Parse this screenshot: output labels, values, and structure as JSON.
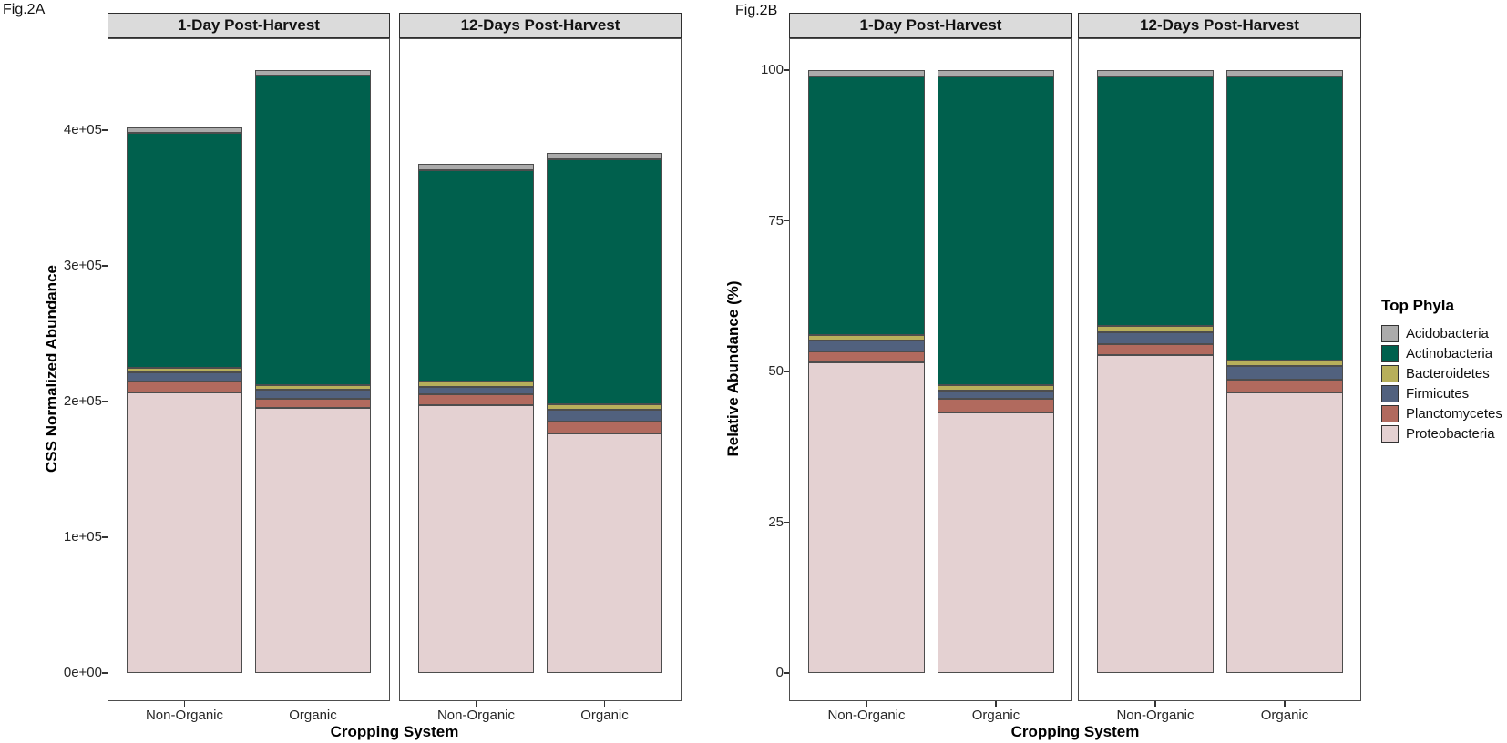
{
  "canvas": {
    "background": "#FFFFFF"
  },
  "colors": {
    "facet_header_bg": "#DBDBDB",
    "facet_header_border": "#2E2E2E",
    "panel_border": "#4D4D4D",
    "bar_border": "#4D4D4D",
    "tick_mark": "#333333",
    "acidobacteria": "#ABABAB",
    "actinobacteria": "#00604D",
    "bacteroidetes": "#B7AF5B",
    "firmicutes": "#51617E",
    "planctomycetes": "#B16A5E",
    "proteobacteria": "#E4D1D2"
  },
  "legend": {
    "title": "Top Phyla",
    "position": "right",
    "items": [
      {
        "label": "Acidobacteria",
        "color": "#ABABAB"
      },
      {
        "label": "Actinobacteria",
        "color": "#00604D"
      },
      {
        "label": "Bacteroidetes",
        "color": "#B7AF5B"
      },
      {
        "label": "Firmicutes",
        "color": "#51617E"
      },
      {
        "label": "Planctomycetes",
        "color": "#B16A5E"
      },
      {
        "label": "Proteobacteria",
        "color": "#E4D1D2"
      }
    ]
  },
  "chart_data": [
    {
      "id": "fig2a",
      "tag": "Fig.2A",
      "type": "stacked-bar",
      "ylabel": "CSS Normalized Abundance",
      "xlabel": "Cropping System",
      "facets": [
        "1-Day Post-Harvest",
        "12-Days Post-Harvest"
      ],
      "bar_labels": [
        "Non-Organic",
        "Organic",
        "Non-Organic",
        "Organic"
      ],
      "bar_facets": [
        0,
        0,
        1,
        1
      ],
      "grid": "off",
      "stack_order": "first series on top",
      "ylim": [
        0,
        460000
      ],
      "y_ticks": [
        {
          "label": "0e+00",
          "value": 0
        },
        {
          "label": "1e+05",
          "value": 100000
        },
        {
          "label": "2e+05",
          "value": 200000
        },
        {
          "label": "3e+05",
          "value": 300000
        },
        {
          "label": "4e+05",
          "value": 400000
        }
      ],
      "series": [
        {
          "name": "Acidobacteria",
          "color": "#ABABAB",
          "values": [
            4000,
            4000,
            4500,
            4500
          ]
        },
        {
          "name": "Actinobacteria",
          "color": "#00604D",
          "values": [
            173000,
            228000,
            156000,
            181000
          ]
        },
        {
          "name": "Bacteroidetes",
          "color": "#B7AF5B",
          "values": [
            3600,
            4000,
            3800,
            4000
          ]
        },
        {
          "name": "Firmicutes",
          "color": "#51617E",
          "values": [
            6700,
            6700,
            5600,
            8500
          ]
        },
        {
          "name": "Planctomycetes",
          "color": "#B16A5E",
          "values": [
            7700,
            6700,
            7900,
            8700
          ]
        },
        {
          "name": "Proteobacteria",
          "color": "#E4D1D2",
          "values": [
            207000,
            195000,
            197300,
            176500
          ]
        }
      ],
      "bar_totals": [
        402000,
        444400,
        375100,
        383200
      ]
    },
    {
      "id": "fig2b",
      "tag": "Fig.2B",
      "type": "stacked-bar",
      "ylabel": "Relative Abundance (%)",
      "xlabel": "Cropping System",
      "facets": [
        "1-Day Post-Harvest",
        "12-Days Post-Harvest"
      ],
      "bar_labels": [
        "Non-Organic",
        "Organic",
        "Non-Organic",
        "Organic"
      ],
      "bar_facets": [
        0,
        0,
        1,
        1
      ],
      "grid": "off",
      "stack_order": "first series on top",
      "ylim": [
        0,
        100
      ],
      "y_ticks": [
        {
          "label": "0",
          "value": 0
        },
        {
          "label": "25",
          "value": 25
        },
        {
          "label": "50",
          "value": 50
        },
        {
          "label": "75",
          "value": 75
        },
        {
          "label": "100",
          "value": 100
        }
      ],
      "series": [
        {
          "name": "Acidobacteria",
          "color": "#ABABAB",
          "values": [
            1.1,
            1.1,
            1.1,
            1.1
          ]
        },
        {
          "name": "Actinobacteria",
          "color": "#00604D",
          "values": [
            42.9,
            51.1,
            41.4,
            47.1
          ]
        },
        {
          "name": "Bacteroidetes",
          "color": "#B7AF5B",
          "values": [
            0.9,
            0.9,
            1.0,
            0.9
          ]
        },
        {
          "name": "Firmicutes",
          "color": "#51617E",
          "values": [
            1.8,
            1.5,
            2.0,
            2.2
          ]
        },
        {
          "name": "Planctomycetes",
          "color": "#B16A5E",
          "values": [
            1.8,
            2.2,
            1.8,
            2.2
          ]
        },
        {
          "name": "Proteobacteria",
          "color": "#E4D1D2",
          "values": [
            51.5,
            43.2,
            52.7,
            46.5
          ]
        }
      ],
      "bar_totals": [
        100,
        100,
        100,
        100
      ]
    }
  ]
}
